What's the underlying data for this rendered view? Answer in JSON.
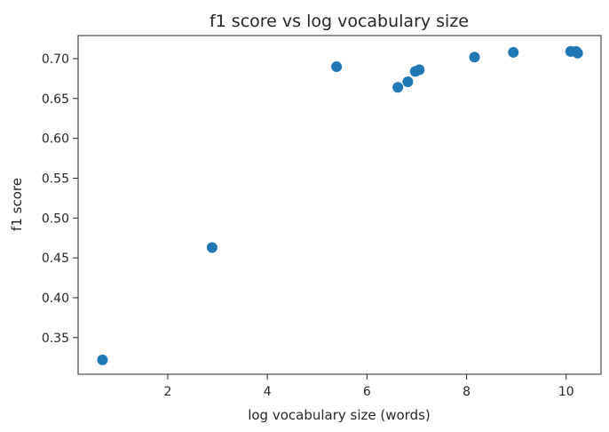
{
  "chart_data": {
    "type": "scatter",
    "title": "f1 score vs log vocabulary size",
    "xlabel": "log vocabulary size (words)",
    "ylabel": "f1 score",
    "xlim": [
      0.2,
      10.7
    ],
    "ylim": [
      0.304,
      0.729
    ],
    "xticks": [
      2,
      4,
      6,
      8,
      10
    ],
    "yticks": [
      0.35,
      0.4,
      0.45,
      0.5,
      0.55,
      0.6,
      0.65,
      0.7
    ],
    "xtick_labels": [
      "2",
      "4",
      "6",
      "8",
      "10"
    ],
    "ytick_labels": [
      "0.35",
      "0.40",
      "0.45",
      "0.50",
      "0.55",
      "0.60",
      "0.65",
      "0.70"
    ],
    "grid": false,
    "marker_color": "#1f77b4",
    "series": [
      {
        "points": [
          {
            "x": 0.69,
            "y": 0.322
          },
          {
            "x": 2.89,
            "y": 0.463
          },
          {
            "x": 5.39,
            "y": 0.69
          },
          {
            "x": 6.62,
            "y": 0.664
          },
          {
            "x": 6.82,
            "y": 0.671
          },
          {
            "x": 6.97,
            "y": 0.684
          },
          {
            "x": 7.05,
            "y": 0.686
          },
          {
            "x": 8.16,
            "y": 0.702
          },
          {
            "x": 8.94,
            "y": 0.708
          },
          {
            "x": 10.09,
            "y": 0.709
          },
          {
            "x": 10.2,
            "y": 0.709
          },
          {
            "x": 10.23,
            "y": 0.707
          }
        ]
      }
    ]
  }
}
